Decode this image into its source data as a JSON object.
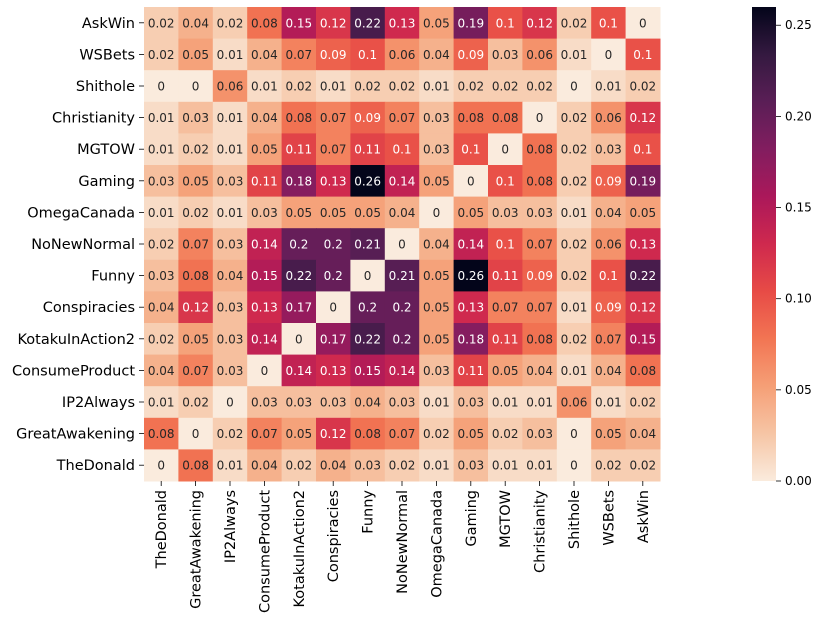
{
  "chart_data": {
    "type": "heatmap",
    "row_labels": [
      "AskWin",
      "WSBets",
      "Shithole",
      "Christianity",
      "MGTOW",
      "Gaming",
      "OmegaCanada",
      "NoNewNormal",
      "Funny",
      "Conspiracies",
      "KotakuInAction2",
      "ConsumeProduct",
      "IP2Always",
      "GreatAwakening",
      "TheDonald"
    ],
    "col_labels": [
      "TheDonald",
      "GreatAwakening",
      "IP2Always",
      "ConsumeProduct",
      "KotakuInAction2",
      "Conspiracies",
      "Funny",
      "NoNewNormal",
      "OmegaCanada",
      "Gaming",
      "MGTOW",
      "Christianity",
      "Shithole",
      "WSBets",
      "AskWin"
    ],
    "values": [
      [
        0.02,
        0.04,
        0.02,
        0.08,
        0.15,
        0.12,
        0.22,
        0.13,
        0.05,
        0.19,
        0.1,
        0.12,
        0.02,
        0.1,
        0
      ],
      [
        0.02,
        0.05,
        0.01,
        0.04,
        0.07,
        0.09,
        0.1,
        0.06,
        0.04,
        0.09,
        0.03,
        0.06,
        0.01,
        0,
        0.1
      ],
      [
        0,
        0,
        0.06,
        0.01,
        0.02,
        0.01,
        0.02,
        0.02,
        0.01,
        0.02,
        0.02,
        0.02,
        0,
        0.01,
        0.02
      ],
      [
        0.01,
        0.03,
        0.01,
        0.04,
        0.08,
        0.07,
        0.09,
        0.07,
        0.03,
        0.08,
        0.08,
        0,
        0.02,
        0.06,
        0.12
      ],
      [
        0.01,
        0.02,
        0.01,
        0.05,
        0.11,
        0.07,
        0.11,
        0.1,
        0.03,
        0.1,
        0,
        0.08,
        0.02,
        0.03,
        0.1
      ],
      [
        0.03,
        0.05,
        0.03,
        0.11,
        0.18,
        0.13,
        0.26,
        0.14,
        0.05,
        0,
        0.1,
        0.08,
        0.02,
        0.09,
        0.19
      ],
      [
        0.01,
        0.02,
        0.01,
        0.03,
        0.05,
        0.05,
        0.05,
        0.04,
        0,
        0.05,
        0.03,
        0.03,
        0.01,
        0.04,
        0.05
      ],
      [
        0.02,
        0.07,
        0.03,
        0.14,
        0.2,
        0.2,
        0.21,
        0,
        0.04,
        0.14,
        0.1,
        0.07,
        0.02,
        0.06,
        0.13
      ],
      [
        0.03,
        0.08,
        0.04,
        0.15,
        0.22,
        0.2,
        0,
        0.21,
        0.05,
        0.26,
        0.11,
        0.09,
        0.02,
        0.1,
        0.22
      ],
      [
        0.04,
        0.12,
        0.03,
        0.13,
        0.17,
        0,
        0.2,
        0.2,
        0.05,
        0.13,
        0.07,
        0.07,
        0.01,
        0.09,
        0.12
      ],
      [
        0.02,
        0.05,
        0.03,
        0.14,
        0,
        0.17,
        0.22,
        0.2,
        0.05,
        0.18,
        0.11,
        0.08,
        0.02,
        0.07,
        0.15
      ],
      [
        0.04,
        0.07,
        0.03,
        0,
        0.14,
        0.13,
        0.15,
        0.14,
        0.03,
        0.11,
        0.05,
        0.04,
        0.01,
        0.04,
        0.08
      ],
      [
        0.01,
        0.02,
        0,
        0.03,
        0.03,
        0.03,
        0.04,
        0.03,
        0.01,
        0.03,
        0.01,
        0.01,
        0.06,
        0.01,
        0.02
      ],
      [
        0.08,
        0,
        0.02,
        0.07,
        0.05,
        0.12,
        0.08,
        0.07,
        0.02,
        0.05,
        0.02,
        0.03,
        0,
        0.05,
        0.04
      ],
      [
        0,
        0.08,
        0.01,
        0.04,
        0.02,
        0.04,
        0.03,
        0.02,
        0.01,
        0.03,
        0.01,
        0.01,
        0,
        0.02,
        0.02
      ]
    ],
    "vmin": 0,
    "vmax": 0.26,
    "colorbar_ticks": [
      "0.00",
      "0.05",
      "0.10",
      "0.15",
      "0.20",
      "0.25"
    ],
    "colormap": "rocket_r"
  }
}
